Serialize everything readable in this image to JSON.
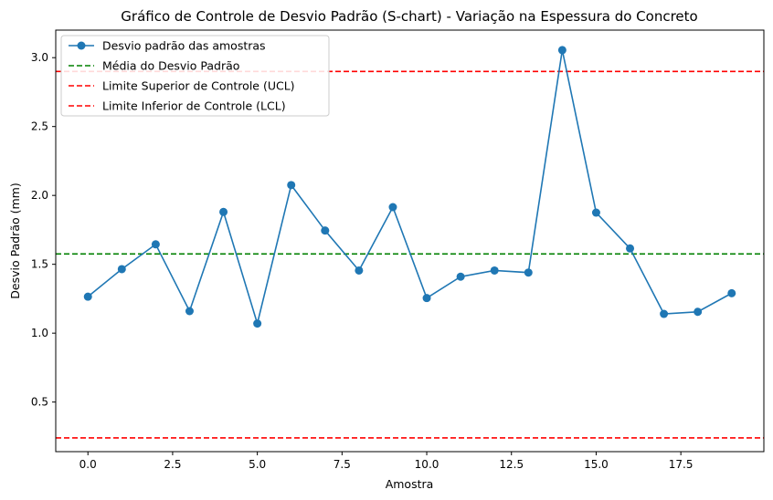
{
  "chart_data": {
    "type": "line",
    "title": "Gráfico de Controle de Desvio Padrão (S-chart) - Variação na Espessura do Concreto",
    "xlabel": "Amostra",
    "ylabel": "Desvio Padrão (mm)",
    "xlim": [
      -0.95,
      19.95
    ],
    "ylim": [
      0.14,
      3.2
    ],
    "xticks": [
      0.0,
      2.5,
      5.0,
      7.5,
      10.0,
      12.5,
      15.0,
      17.5
    ],
    "xtick_labels": [
      "0.0",
      "2.5",
      "5.0",
      "7.5",
      "10.0",
      "12.5",
      "15.0",
      "17.5"
    ],
    "yticks": [
      0.5,
      1.0,
      1.5,
      2.0,
      2.5,
      3.0
    ],
    "ytick_labels": [
      "0.5",
      "1.0",
      "1.5",
      "2.0",
      "2.5",
      "3.0"
    ],
    "legend_position": "top-left",
    "grid": false,
    "series": [
      {
        "name": "Desvio padrão das amostras",
        "color": "#1f77b4",
        "marker": "circle",
        "x": [
          0,
          1,
          2,
          3,
          4,
          5,
          6,
          7,
          8,
          9,
          10,
          11,
          12,
          13,
          14,
          15,
          16,
          17,
          18,
          19
        ],
        "values": [
          1.265,
          1.465,
          1.645,
          1.16,
          1.88,
          1.07,
          2.075,
          1.745,
          1.455,
          1.915,
          1.255,
          1.41,
          1.455,
          1.44,
          3.055,
          1.875,
          1.615,
          1.14,
          1.155,
          1.29
        ]
      }
    ],
    "reference_lines": [
      {
        "name": "Média do Desvio Padrão",
        "value": 1.575,
        "color": "#008000",
        "style": "dashed"
      },
      {
        "name": "Limite Superior de Controle (UCL)",
        "value": 2.9,
        "color": "#ff0000",
        "style": "dashed"
      },
      {
        "name": "Limite Inferior de Controle (LCL)",
        "value": 0.24,
        "color": "#ff0000",
        "style": "dashed"
      }
    ]
  }
}
